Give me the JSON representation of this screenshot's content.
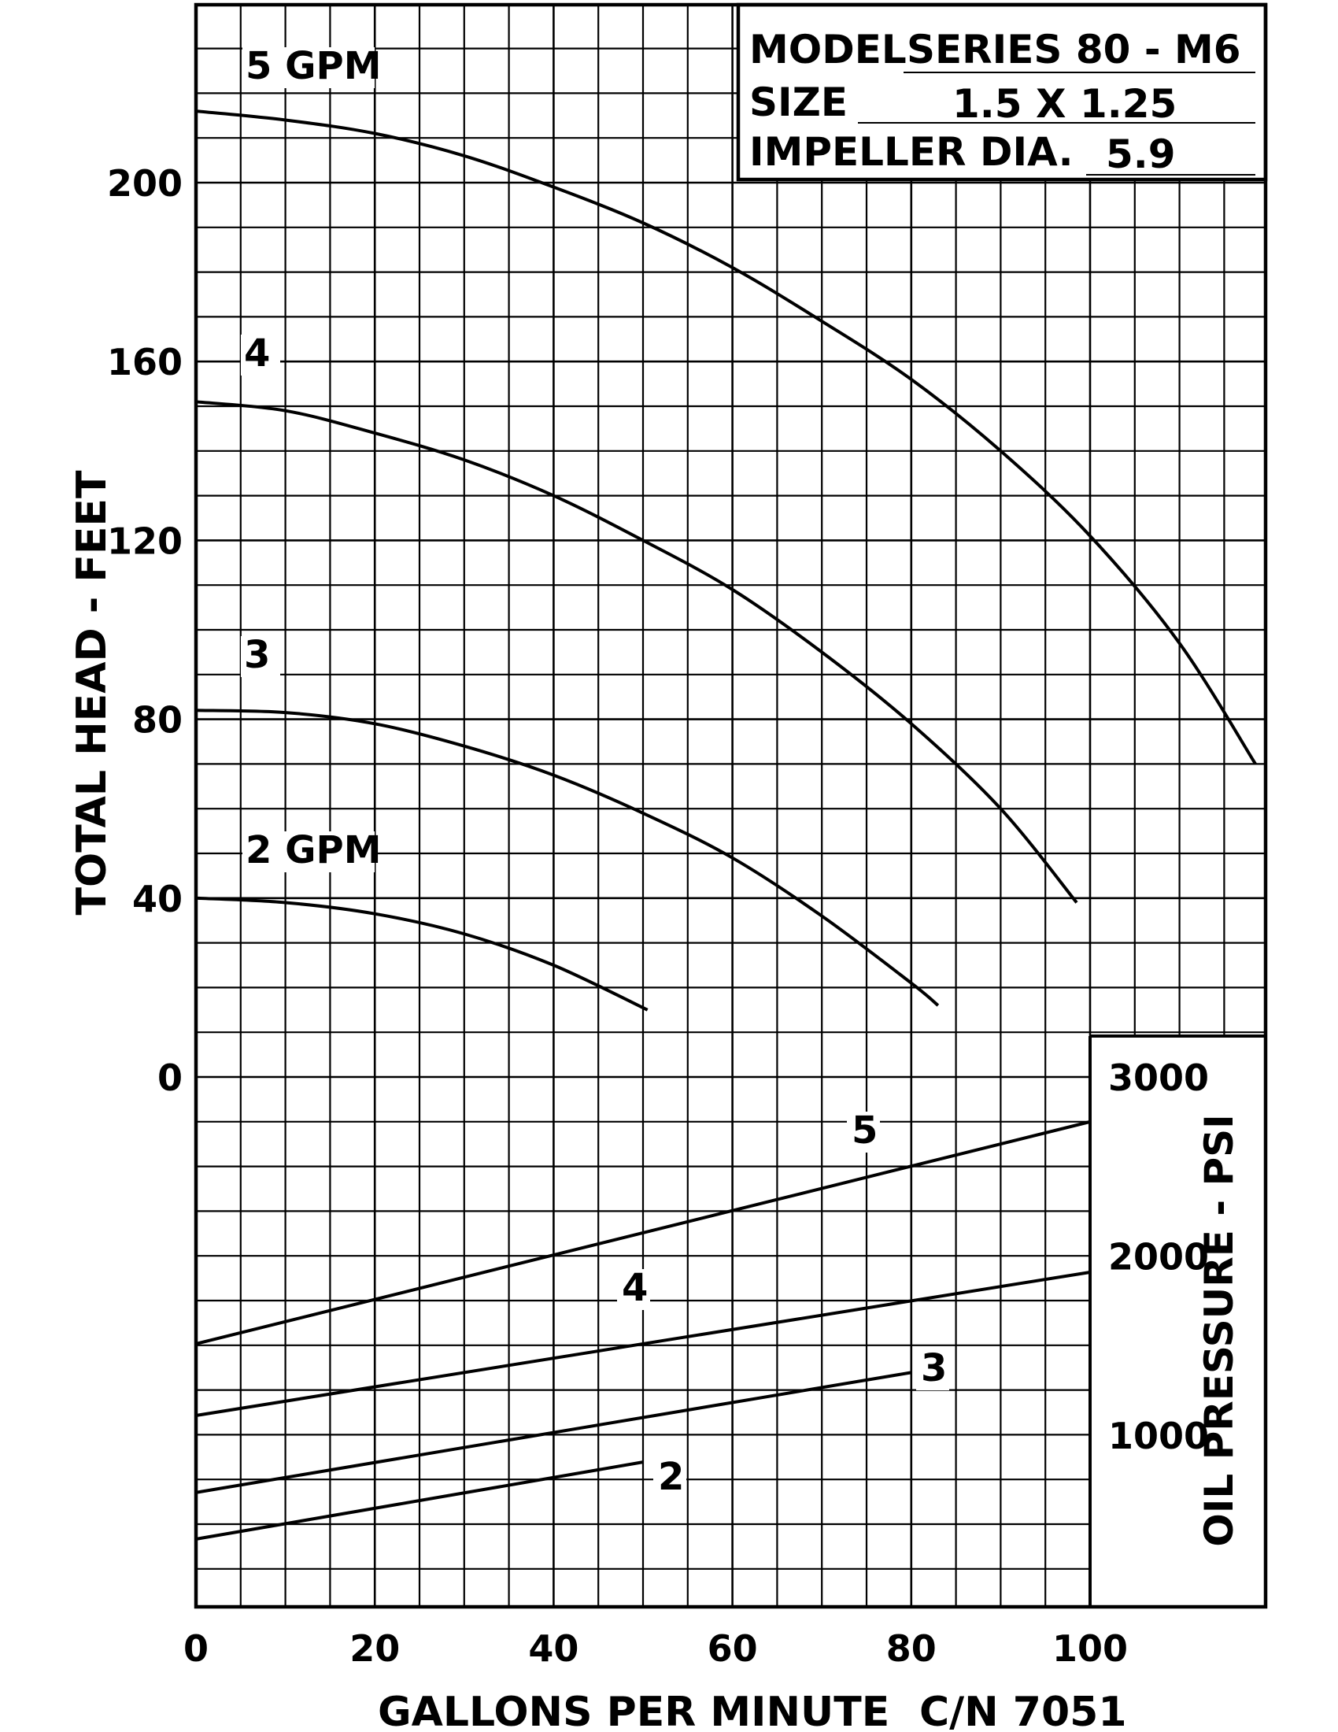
{
  "chart_data": {
    "type": "line",
    "xlabel": "GALLONS PER MINUTE",
    "part_number": "C/N 7051",
    "x_ticks": [
      "0",
      "20",
      "40",
      "60",
      "80",
      "100"
    ],
    "xlim": [
      0,
      120
    ],
    "head_axis": {
      "label": "TOTAL HEAD - FEET",
      "ylim": [
        0,
        250
      ],
      "ticks": [
        "0",
        "40",
        "80",
        "120",
        "160",
        "200"
      ]
    },
    "pressure_axis": {
      "label": "OIL PRESSURE - PSI",
      "ylim": [
        -1600,
        3000
      ],
      "ticks": [
        "3000",
        "2000",
        "1000"
      ]
    },
    "info_box": {
      "model_label": "MODEL",
      "model_value": "SERIES 80 - M6",
      "size_label": "SIZE",
      "size_value": "1.5 X 1.25",
      "impeller_label": "IMPELLER DIA.",
      "impeller_value": "5.9"
    },
    "head_series": [
      {
        "name": "5 GPM",
        "x": [
          0,
          10,
          20,
          30,
          40,
          50,
          60,
          70,
          80,
          90,
          100,
          110,
          118.5
        ],
        "y": [
          216,
          214,
          211,
          206,
          199,
          191,
          181,
          169,
          156,
          140,
          121,
          97,
          70
        ]
      },
      {
        "name": "4",
        "x": [
          0,
          10,
          20,
          30,
          40,
          50,
          60,
          70,
          80,
          90,
          98.5
        ],
        "y": [
          151,
          149,
          144,
          138,
          130,
          120,
          109,
          95,
          79,
          60,
          39
        ]
      },
      {
        "name": "3",
        "x": [
          0,
          10,
          20,
          30,
          40,
          50,
          60,
          70,
          80,
          83
        ],
        "y": [
          82,
          81.5,
          79,
          74,
          67.5,
          59,
          49,
          36,
          21,
          16
        ]
      },
      {
        "name": "2 GPM",
        "x": [
          0,
          10,
          20,
          30,
          40,
          50.5
        ],
        "y": [
          40,
          39,
          36.5,
          32,
          25,
          15
        ]
      }
    ],
    "pressure_series": [
      {
        "name": "5",
        "x": [
          0,
          100
        ],
        "y": [
          1510,
          2750
        ]
      },
      {
        "name": "4",
        "x": [
          0,
          100
        ],
        "y": [
          1110,
          1910
        ]
      },
      {
        "name": "3",
        "x": [
          0,
          80
        ],
        "y": [
          680,
          1350
        ]
      },
      {
        "name": "2",
        "x": [
          0,
          50
        ],
        "y": [
          420,
          850
        ]
      }
    ]
  }
}
